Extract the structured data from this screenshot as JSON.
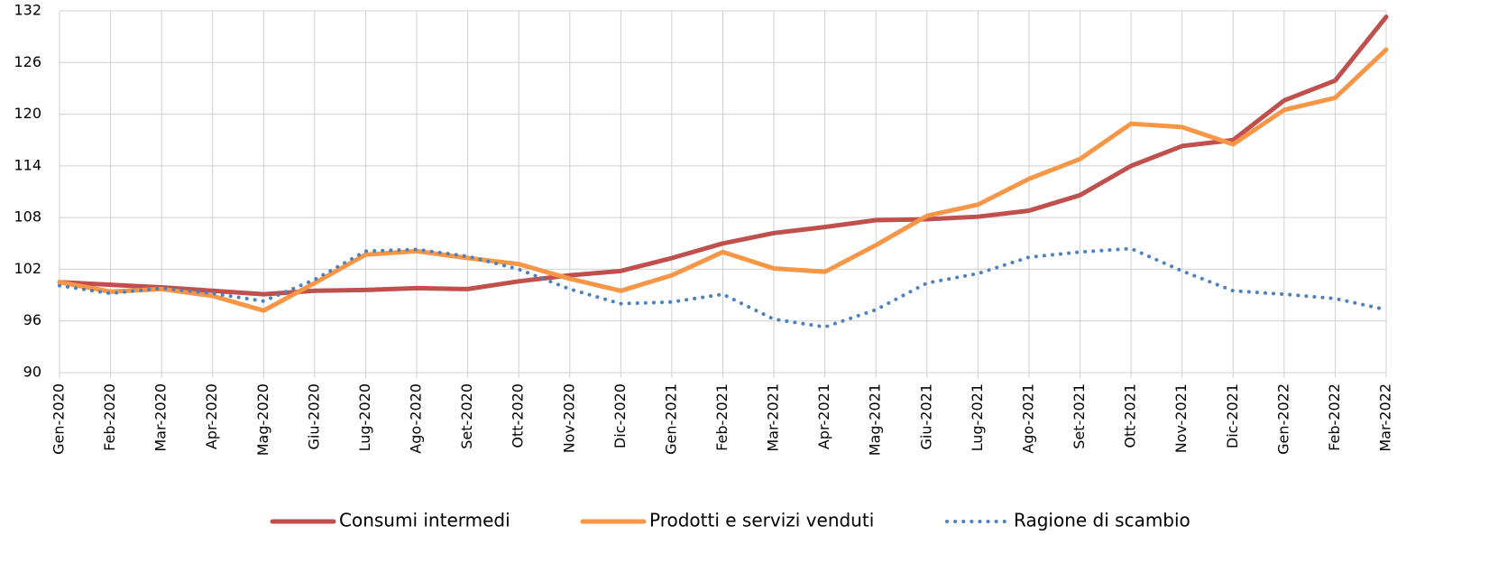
{
  "chart_data": {
    "type": "line",
    "categories": [
      "Gen-2020",
      "Feb-2020",
      "Mar-2020",
      "Apr-2020",
      "Mag-2020",
      "Giu-2020",
      "Lug-2020",
      "Ago-2020",
      "Set-2020",
      "Ott-2020",
      "Nov-2020",
      "Dic-2020",
      "Gen-2021",
      "Feb-2021",
      "Mar-2021",
      "Apr-2021",
      "Mag-2021",
      "Giu-2021",
      "Lug-2021",
      "Ago-2021",
      "Set-2021",
      "Ott-2021",
      "Nov-2021",
      "Dic-2021",
      "Gen-2022",
      "Feb-2022",
      "Mar-2022"
    ],
    "series": [
      {
        "name": "Consumi intermedi",
        "color": "#c0504d",
        "dash": "solid",
        "values": [
          100.5,
          100.2,
          99.9,
          99.5,
          99.1,
          99.5,
          99.6,
          99.8,
          99.7,
          100.6,
          101.3,
          101.8,
          103.3,
          105.0,
          106.2,
          106.9,
          107.7,
          107.8,
          108.1,
          108.8,
          110.6,
          114.0,
          116.3,
          117.0,
          121.6,
          123.9,
          131.3
        ]
      },
      {
        "name": "Prodotti e servizi venduti",
        "color": "#f79646",
        "dash": "solid",
        "values": [
          100.5,
          99.4,
          99.7,
          98.9,
          97.2,
          100.4,
          103.7,
          104.1,
          103.3,
          102.6,
          100.9,
          99.5,
          101.3,
          104.0,
          102.1,
          101.7,
          104.8,
          108.2,
          109.5,
          112.5,
          114.8,
          118.9,
          118.5,
          116.5,
          120.5,
          121.9,
          127.5
        ]
      },
      {
        "name": "Ragione di scambio",
        "color": "#4f81bd",
        "dash": "dotted",
        "values": [
          100.1,
          99.2,
          99.8,
          99.2,
          98.3,
          100.8,
          104.1,
          104.3,
          103.5,
          102.0,
          99.7,
          98.0,
          98.2,
          99.1,
          96.2,
          95.3,
          97.3,
          100.4,
          101.5,
          103.4,
          104.0,
          104.4,
          101.8,
          99.5,
          99.1,
          98.6,
          97.3
        ]
      }
    ],
    "ylim": [
      90,
      132
    ],
    "yticks": [
      90,
      96,
      102,
      108,
      114,
      120,
      126,
      132
    ],
    "grid": true,
    "legend": "bottom"
  }
}
